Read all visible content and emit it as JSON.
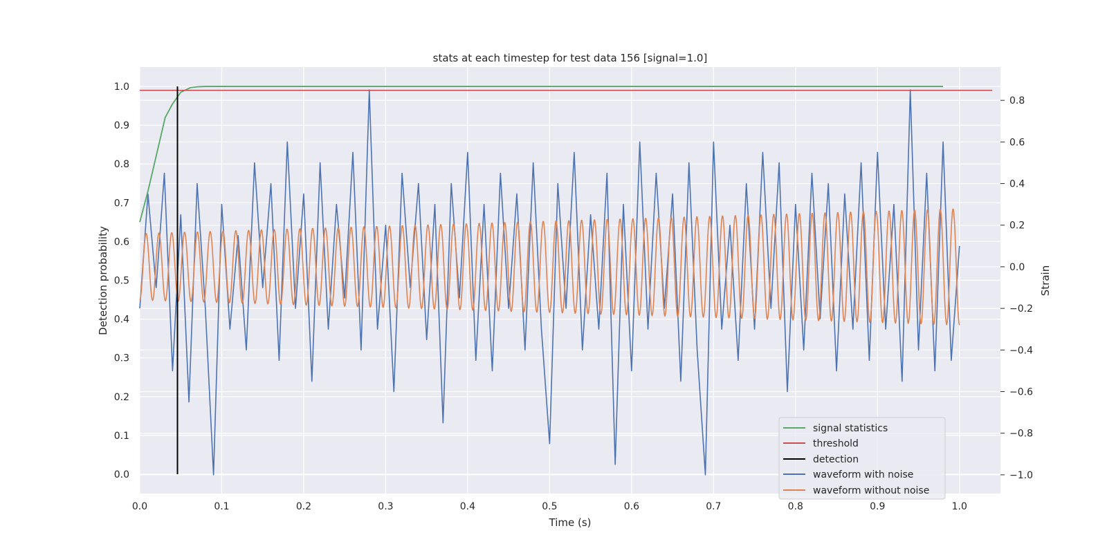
{
  "chart_data": {
    "type": "line",
    "title": "stats at each timestep for test data 156 [signal=1.0]",
    "xlabel": "Time (s)",
    "ylabel": "Detection probability",
    "y2label": "Strain",
    "xlim": [
      0.0,
      1.05
    ],
    "ylim": [
      -0.05,
      1.05
    ],
    "y2lim": [
      -1.09,
      0.96
    ],
    "xticks": [
      "0.0",
      "0.1",
      "0.2",
      "0.3",
      "0.4",
      "0.5",
      "0.6",
      "0.7",
      "0.8",
      "0.9",
      "1.0"
    ],
    "yticks": [
      "0.0",
      "0.1",
      "0.2",
      "0.3",
      "0.4",
      "0.5",
      "0.6",
      "0.7",
      "0.8",
      "0.9",
      "1.0"
    ],
    "y2ticks": [
      "−1.0",
      "−0.8",
      "−0.6",
      "−0.4",
      "−0.2",
      "0.0",
      "0.2",
      "0.4",
      "0.6",
      "0.8"
    ],
    "grid": true,
    "legend_position": "lower right",
    "series": [
      {
        "name": "signal statistics",
        "color": "#55a868",
        "axis": "left",
        "x": [
          0.0,
          0.01,
          0.02,
          0.031,
          0.04,
          0.05,
          0.062,
          0.07,
          0.08,
          0.1,
          0.2,
          0.4,
          0.6,
          0.8,
          0.98
        ],
        "y": [
          0.65,
          0.73,
          0.82,
          0.92,
          0.955,
          0.985,
          0.997,
          0.999,
          1.0,
          1.0,
          1.0,
          1.0,
          1.0,
          1.0,
          1.0
        ]
      },
      {
        "name": "threshold",
        "color": "#c44e52",
        "axis": "left",
        "x": [
          0.0,
          1.04
        ],
        "y": [
          0.99,
          0.99
        ]
      },
      {
        "name": "detection",
        "color": "#000000",
        "axis": "left",
        "x": [
          0.046,
          0.046
        ],
        "y": [
          0.0,
          1.0
        ]
      },
      {
        "name": "waveform with noise",
        "color": "#4c72b0",
        "axis": "right",
        "x": [
          0.0,
          0.01,
          0.02,
          0.03,
          0.04,
          0.05,
          0.06,
          0.07,
          0.08,
          0.09,
          0.1,
          0.11,
          0.12,
          0.13,
          0.14,
          0.15,
          0.16,
          0.17,
          0.18,
          0.19,
          0.2,
          0.21,
          0.22,
          0.23,
          0.24,
          0.25,
          0.26,
          0.27,
          0.28,
          0.29,
          0.3,
          0.31,
          0.32,
          0.33,
          0.34,
          0.35,
          0.36,
          0.37,
          0.38,
          0.39,
          0.4,
          0.41,
          0.42,
          0.43,
          0.44,
          0.45,
          0.46,
          0.47,
          0.48,
          0.49,
          0.5,
          0.51,
          0.52,
          0.53,
          0.54,
          0.55,
          0.56,
          0.57,
          0.58,
          0.59,
          0.6,
          0.61,
          0.62,
          0.63,
          0.64,
          0.65,
          0.66,
          0.67,
          0.68,
          0.69,
          0.7,
          0.71,
          0.72,
          0.73,
          0.74,
          0.75,
          0.76,
          0.77,
          0.78,
          0.79,
          0.8,
          0.81,
          0.82,
          0.83,
          0.84,
          0.85,
          0.86,
          0.87,
          0.88,
          0.89,
          0.9,
          0.91,
          0.92,
          0.93,
          0.94,
          0.95,
          0.96,
          0.97,
          0.98,
          0.99,
          1.0
        ],
        "y": [
          -0.2,
          0.35,
          -0.1,
          0.45,
          -0.5,
          0.25,
          -0.65,
          0.4,
          -0.2,
          -1.0,
          0.3,
          -0.3,
          0.15,
          -0.4,
          0.5,
          -0.1,
          0.4,
          -0.45,
          0.6,
          -0.2,
          0.35,
          -0.55,
          0.5,
          -0.3,
          0.3,
          -0.15,
          0.55,
          -0.4,
          0.85,
          -0.3,
          0.2,
          -0.6,
          0.45,
          -0.1,
          0.4,
          -0.35,
          0.3,
          -0.75,
          0.4,
          -0.15,
          0.55,
          -0.45,
          0.3,
          -0.5,
          0.45,
          -0.2,
          0.35,
          -0.4,
          0.5,
          -0.3,
          -0.85,
          0.4,
          -0.2,
          0.55,
          -0.4,
          0.25,
          -0.3,
          0.45,
          -0.95,
          0.3,
          -0.5,
          0.6,
          -0.3,
          0.45,
          -0.2,
          0.35,
          -0.55,
          0.5,
          -0.4,
          -1.0,
          0.6,
          -0.3,
          0.2,
          -0.45,
          0.4,
          -0.3,
          0.55,
          -0.2,
          0.5,
          -0.6,
          0.3,
          -0.4,
          0.45,
          -0.25,
          0.4,
          -0.5,
          0.35,
          -0.3,
          0.5,
          -0.45,
          0.55,
          -0.3,
          0.3,
          -0.55,
          0.85,
          -0.4,
          0.45,
          -0.5,
          0.6,
          -0.45,
          0.1
        ]
      },
      {
        "name": "waveform without noise",
        "color": "#dd8452",
        "axis": "right",
        "amplitude_start": 0.16,
        "amplitude_end": 0.28,
        "cycles": 64
      }
    ]
  }
}
